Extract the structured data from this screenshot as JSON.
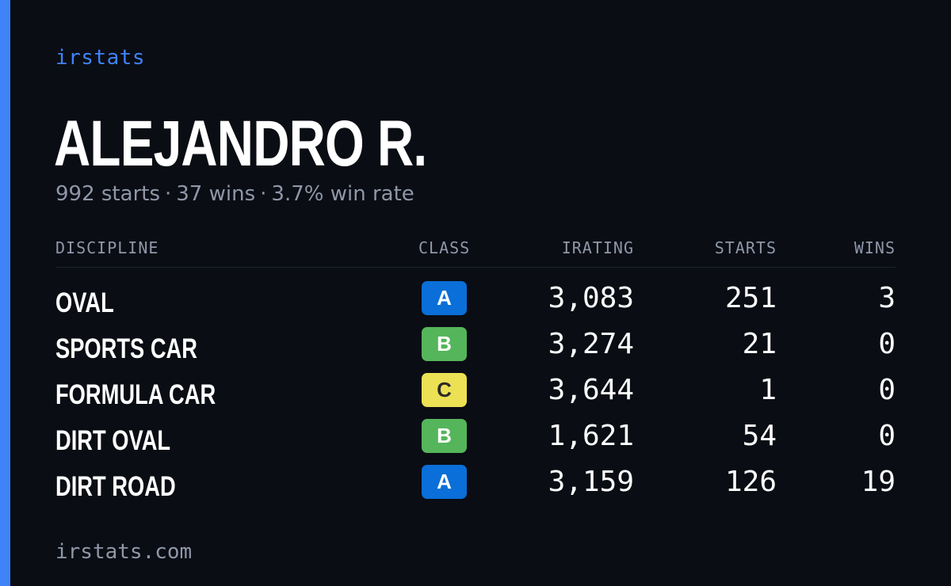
{
  "brand": "irstats",
  "player": {
    "name": "ALEJANDRO R.",
    "starts": "992 starts",
    "wins": "37 wins",
    "win_rate": "3.7% win rate",
    "separator": "·"
  },
  "table": {
    "headers": {
      "discipline": "DISCIPLINE",
      "class": "CLASS",
      "irating": "IRATING",
      "starts": "STARTS",
      "wins": "WINS"
    },
    "rows": [
      {
        "discipline": "OVAL",
        "class": "A",
        "irating": "3,083",
        "starts": "251",
        "wins": "3"
      },
      {
        "discipline": "SPORTS CAR",
        "class": "B",
        "irating": "3,274",
        "starts": "21",
        "wins": "0"
      },
      {
        "discipline": "FORMULA CAR",
        "class": "C",
        "irating": "3,644",
        "starts": "1",
        "wins": "0"
      },
      {
        "discipline": "DIRT OVAL",
        "class": "B",
        "irating": "1,621",
        "starts": "54",
        "wins": "0"
      },
      {
        "discipline": "DIRT ROAD",
        "class": "A",
        "irating": "3,159",
        "starts": "126",
        "wins": "19"
      }
    ]
  },
  "class_colors": {
    "A": {
      "bg": "#0a6fd8",
      "fg": "#ffffff"
    },
    "B": {
      "bg": "#55b55a",
      "fg": "#ffffff"
    },
    "C": {
      "bg": "#ece154",
      "fg": "#2a2a2a"
    }
  },
  "colors": {
    "accent": "#3f83f8",
    "background": "#0a0d14",
    "muted_text": "#8f97a8"
  },
  "footer": "irstats.com"
}
